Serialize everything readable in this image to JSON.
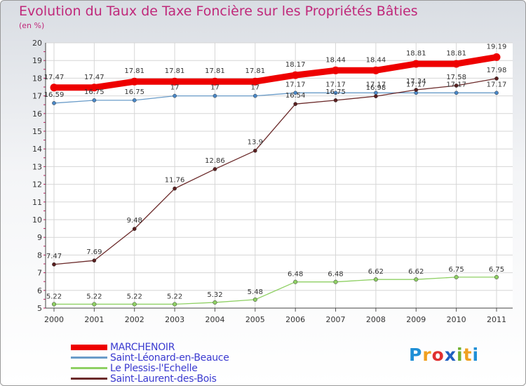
{
  "chart_data": {
    "type": "line",
    "title": "Evolution du Taux de Taxe Foncière sur les Propriétés Bâties",
    "ylabel": "(en %)",
    "xlabel": "",
    "categories": [
      "2000",
      "2001",
      "2002",
      "2003",
      "2004",
      "2005",
      "2006",
      "2007",
      "2008",
      "2009",
      "2010",
      "2011"
    ],
    "ylim": [
      5,
      20
    ],
    "yticks": [
      5,
      6,
      7,
      8,
      9,
      10,
      11,
      12,
      13,
      14,
      15,
      16,
      17,
      18,
      19,
      20
    ],
    "series": [
      {
        "name": "MARCHENOIR",
        "color": "#ee0000",
        "values": [
          17.47,
          17.47,
          17.81,
          17.81,
          17.81,
          17.81,
          18.17,
          18.44,
          18.44,
          18.81,
          18.81,
          19.19
        ],
        "labels": [
          "17.47",
          "17.47",
          "17.81",
          "17.81",
          "17.81",
          "17.81",
          "18.17",
          "18.44",
          "18.44",
          "18.81",
          "18.81",
          "19.19"
        ]
      },
      {
        "name": "Saint-Léonard-en-Beauce",
        "color": "#6a9cc9",
        "values": [
          16.59,
          16.75,
          16.75,
          17,
          17,
          17,
          17.17,
          17.17,
          17.17,
          17.17,
          17.17,
          17.17
        ],
        "labels": [
          "16.59",
          "16.75",
          "16.75",
          "17",
          "17",
          "17",
          "17.17",
          "17.17",
          "17.17",
          "17.17",
          "17.17",
          "17.17"
        ]
      },
      {
        "name": "Le Plessis-l'Echelle",
        "color": "#8fd064",
        "values": [
          5.22,
          5.22,
          5.22,
          5.22,
          5.32,
          5.48,
          6.48,
          6.48,
          6.62,
          6.62,
          6.75,
          6.75
        ],
        "labels": [
          "5.22",
          "5.22",
          "5.22",
          "5.22",
          "5.32",
          "5.48",
          "6.48",
          "6.48",
          "6.62",
          "6.62",
          "6.75",
          "6.75"
        ]
      },
      {
        "name": "Saint-Laurent-des-Bois",
        "color": "#6b2a2a",
        "values": [
          7.47,
          7.69,
          9.48,
          11.76,
          12.86,
          13.9,
          16.54,
          16.75,
          16.98,
          17.34,
          17.58,
          17.98
        ],
        "labels": [
          "7.47",
          "7.69",
          "9.48",
          "11.76",
          "12.86",
          "13.9",
          "16.54",
          "16.75",
          "16.98",
          "17.34",
          "17.58",
          "17.98"
        ]
      }
    ]
  },
  "brand": {
    "text": "Proxiti",
    "letters": [
      "P",
      "r",
      "o",
      "x",
      "i",
      "t",
      "i"
    ],
    "colors": [
      "#1f8fd6",
      "#f0a020",
      "#e03030",
      "#2060c0",
      "#70b030",
      "#f0a020",
      "#1f8fd6"
    ]
  }
}
